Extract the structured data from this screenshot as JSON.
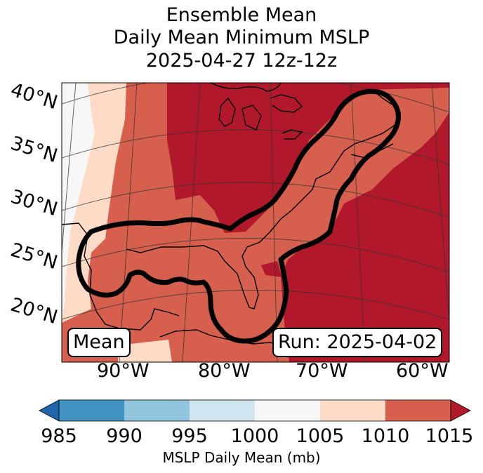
{
  "title": {
    "line1": "Ensemble Mean",
    "line2": "Daily Mean Minimum MSLP",
    "line3": "2025-04-27 12z-12z"
  },
  "map": {
    "lat_labels": [
      "40°N",
      "35°N",
      "30°N",
      "25°N",
      "20°N"
    ],
    "lon_labels": [
      "90°W",
      "80°W",
      "70°W",
      "60°W"
    ],
    "mean_box": "Mean",
    "run_box": "Run: 2025-04-02",
    "outline_color": "#000000"
  },
  "colorbar": {
    "label": "MSLP Daily Mean (mb)",
    "ticks": [
      "985",
      "990",
      "995",
      "1000",
      "1005",
      "1010",
      "1015"
    ],
    "colors": [
      "#2166ac",
      "#4393c3",
      "#92c5de",
      "#d1e5f0",
      "#f7f7f7",
      "#fddbc7",
      "#d6604d",
      "#b2182b"
    ]
  }
}
